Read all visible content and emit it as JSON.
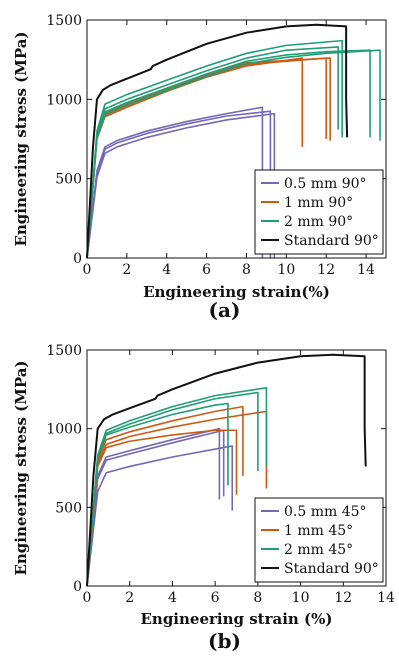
{
  "colors": {
    "purple": "#7468b5",
    "orange": "#cc5a14",
    "green": "#1f9e76",
    "black": "#111111"
  },
  "chart_data": [
    {
      "type": "line",
      "panel_label": "(a)",
      "xlabel": "Engineering strain(%)",
      "ylabel": "Engineering stress (MPa)",
      "xlim": [
        0,
        15
      ],
      "ylim": [
        0,
        1500
      ],
      "xticks": [
        0,
        2,
        4,
        6,
        8,
        10,
        12,
        14
      ],
      "yticks": [
        0,
        500,
        1000,
        1500
      ],
      "legend_position": "bottom-right",
      "legend": [
        {
          "label": "0.5 mm 90°",
          "color": "#7468b5"
        },
        {
          "label": "1 mm 90°",
          "color": "#cc5a14"
        },
        {
          "label": "2 mm 90°",
          "color": "#1f9e76"
        },
        {
          "label": "Standard 90°",
          "color": "#111111"
        }
      ],
      "series": [
        {
          "name": "0.5 mm 90°",
          "color": "#7468b5",
          "x": [
            0,
            0.5,
            0.9,
            1.5,
            3,
            5,
            7,
            8.8,
            8.8
          ],
          "y": [
            0,
            550,
            700,
            740,
            800,
            860,
            910,
            950,
            0
          ]
        },
        {
          "color": "#7468b5",
          "x": [
            0,
            0.5,
            0.9,
            1.5,
            3,
            5,
            7,
            9.2,
            9.2
          ],
          "y": [
            0,
            530,
            685,
            725,
            785,
            845,
            895,
            925,
            0
          ]
        },
        {
          "color": "#7468b5",
          "x": [
            0,
            0.5,
            0.9,
            1.5,
            3,
            5,
            7,
            9.4,
            9.4
          ],
          "y": [
            0,
            510,
            660,
            700,
            760,
            820,
            870,
            910,
            0
          ]
        },
        {
          "name": "1 mm 90°",
          "color": "#cc5a14",
          "x": [
            0,
            0.5,
            0.9,
            2,
            4,
            6,
            8,
            10.8,
            10.8
          ],
          "y": [
            0,
            750,
            890,
            950,
            1050,
            1140,
            1210,
            1260,
            700
          ]
        },
        {
          "color": "#cc5a14",
          "x": [
            0,
            0.5,
            0.9,
            2,
            4,
            6,
            8,
            12.0,
            12.0
          ],
          "y": [
            0,
            760,
            900,
            960,
            1060,
            1150,
            1220,
            1260,
            750
          ]
        },
        {
          "color": "#cc5a14",
          "x": [
            0,
            0.5,
            0.9,
            2,
            4,
            6,
            8,
            12.2,
            12.2
          ],
          "y": [
            0,
            770,
            910,
            970,
            1070,
            1160,
            1230,
            1260,
            740
          ]
        },
        {
          "name": "2 mm 90°",
          "color": "#1f9e76",
          "x": [
            0,
            0.5,
            0.9,
            2,
            4,
            6,
            8,
            10,
            12.8,
            12.8
          ],
          "y": [
            0,
            800,
            970,
            1030,
            1120,
            1210,
            1290,
            1340,
            1370,
            760
          ]
        },
        {
          "color": "#1f9e76",
          "x": [
            0,
            0.5,
            0.9,
            2,
            4,
            6,
            8,
            10,
            12.6,
            12.6
          ],
          "y": [
            0,
            780,
            940,
            1000,
            1090,
            1180,
            1260,
            1310,
            1330,
            810
          ]
        },
        {
          "color": "#1f9e76",
          "x": [
            0,
            0.5,
            0.9,
            2,
            4,
            6,
            8,
            10,
            12,
            14.2,
            14.2
          ],
          "y": [
            0,
            770,
            920,
            980,
            1070,
            1160,
            1240,
            1280,
            1300,
            1310,
            760
          ]
        },
        {
          "color": "#1f9e76",
          "x": [
            0,
            0.5,
            0.9,
            2,
            4,
            6,
            8,
            10,
            12,
            14.7,
            14.7
          ],
          "y": [
            0,
            760,
            905,
            965,
            1055,
            1145,
            1225,
            1265,
            1290,
            1310,
            740
          ]
        },
        {
          "name": "Standard 90°",
          "color": "#111111",
          "x": [
            0,
            0.3,
            0.5,
            0.8,
            1.2,
            2,
            3.2,
            3.3,
            4,
            6,
            8,
            10,
            11.5,
            13,
            13,
            13.05
          ],
          "y": [
            0,
            700,
            1000,
            1060,
            1090,
            1130,
            1190,
            1210,
            1250,
            1350,
            1420,
            1460,
            1470,
            1460,
            1000,
            760
          ]
        }
      ]
    },
    {
      "type": "line",
      "panel_label": "(b)",
      "xlabel": "Engineering strain (%)",
      "ylabel": "Engineering stress (MPa)",
      "xlim": [
        0,
        14
      ],
      "ylim": [
        0,
        1500
      ],
      "xticks": [
        0,
        2,
        4,
        6,
        8,
        10,
        12,
        14
      ],
      "yticks": [
        0,
        500,
        1000,
        1500
      ],
      "legend_position": "bottom-right",
      "legend": [
        {
          "label": "0.5 mm 45°",
          "color": "#7468b5"
        },
        {
          "label": "1 mm 45°",
          "color": "#cc5a14"
        },
        {
          "label": "2 mm 45°",
          "color": "#1f9e76"
        },
        {
          "label": "Standard 90°",
          "color": "#111111"
        }
      ],
      "series": [
        {
          "name": "0.5 mm 45°",
          "color": "#7468b5",
          "x": [
            0,
            0.5,
            0.9,
            2,
            4,
            6.2,
            6.2
          ],
          "y": [
            0,
            700,
            820,
            860,
            930,
            1000,
            550
          ]
        },
        {
          "color": "#7468b5",
          "x": [
            0,
            0.5,
            0.9,
            2,
            4,
            6.4,
            6.4
          ],
          "y": [
            0,
            680,
            800,
            840,
            910,
            990,
            570
          ]
        },
        {
          "color": "#7468b5",
          "x": [
            0,
            0.5,
            0.9,
            2,
            4,
            6.8,
            6.8
          ],
          "y": [
            0,
            600,
            720,
            760,
            820,
            890,
            480
          ]
        },
        {
          "name": "1 mm 45°",
          "color": "#cc5a14",
          "x": [
            0,
            0.5,
            0.9,
            2,
            4,
            6,
            7.3,
            7.3
          ],
          "y": [
            0,
            800,
            930,
            980,
            1050,
            1110,
            1140,
            700
          ]
        },
        {
          "color": "#cc5a14",
          "x": [
            0,
            0.5,
            0.9,
            2,
            4,
            6,
            7.0,
            7.0
          ],
          "y": [
            0,
            760,
            880,
            920,
            960,
            990,
            990,
            580
          ]
        },
        {
          "color": "#cc5a14",
          "x": [
            0,
            0.5,
            0.9,
            2,
            4,
            6,
            8.4,
            8.4
          ],
          "y": [
            0,
            780,
            900,
            950,
            1010,
            1060,
            1110,
            620
          ]
        },
        {
          "name": "2 mm 45°",
          "color": "#1f9e76",
          "x": [
            0,
            0.5,
            0.9,
            2,
            4,
            6,
            8.4,
            8.4
          ],
          "y": [
            0,
            830,
            990,
            1050,
            1140,
            1210,
            1260,
            760
          ]
        },
        {
          "color": "#1f9e76",
          "x": [
            0,
            0.5,
            0.9,
            2,
            4,
            6,
            8.0,
            8.0
          ],
          "y": [
            0,
            820,
            970,
            1030,
            1120,
            1190,
            1230,
            730
          ]
        },
        {
          "color": "#1f9e76",
          "x": [
            0,
            0.5,
            0.9,
            2,
            4,
            6,
            6.6,
            6.6
          ],
          "y": [
            0,
            810,
            960,
            1010,
            1090,
            1150,
            1160,
            640
          ]
        },
        {
          "name": "Standard 90°",
          "color": "#111111",
          "x": [
            0,
            0.3,
            0.5,
            0.8,
            1.2,
            2,
            3.2,
            3.3,
            4,
            6,
            8,
            10,
            11.5,
            13,
            13,
            13.05
          ],
          "y": [
            0,
            700,
            1000,
            1060,
            1090,
            1130,
            1190,
            1210,
            1250,
            1350,
            1420,
            1460,
            1470,
            1460,
            1000,
            760
          ]
        }
      ]
    }
  ]
}
